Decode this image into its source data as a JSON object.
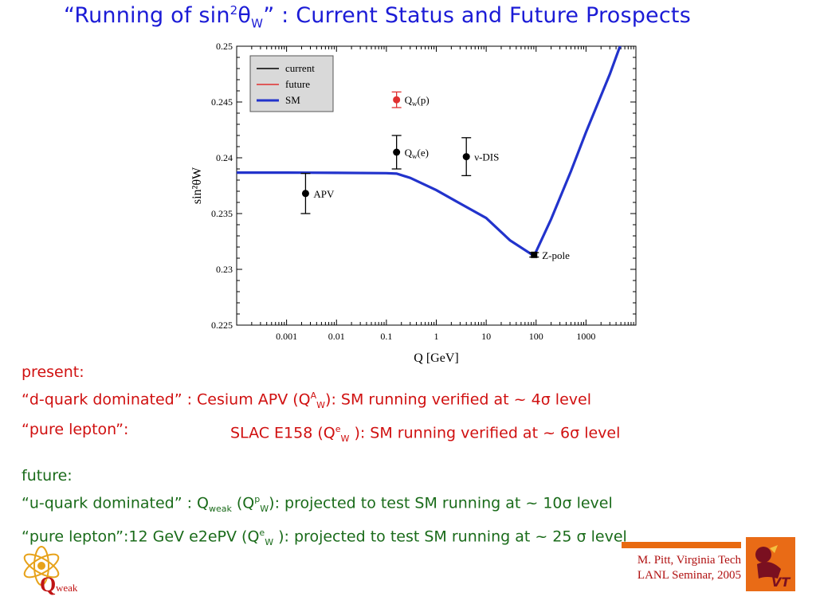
{
  "title": {
    "prefix": "“Running of sin",
    "sup": "2",
    "theta": "θ",
    "sub": "W",
    "suffix": "” : Current Status and Future Prospects"
  },
  "chart_data": {
    "type": "scatter",
    "xlabel": "Q [GeV]",
    "ylabel": "sin²θW",
    "xscale": "log",
    "xlim": [
      0.0001,
      10000
    ],
    "ylim": [
      0.225,
      0.25
    ],
    "xticks": [
      "0.001",
      "0.01",
      "0.1",
      "1",
      "10",
      "100",
      "1000"
    ],
    "xtick_values": [
      0.001,
      0.01,
      0.1,
      1,
      10,
      100,
      1000
    ],
    "yticks": [
      "0.225",
      "0.23",
      "0.235",
      "0.24",
      "0.245",
      "0.25"
    ],
    "ytick_values": [
      0.225,
      0.23,
      0.235,
      0.24,
      0.245,
      0.25
    ],
    "legend": {
      "placement": "top-left",
      "entries": [
        {
          "label": "current",
          "color": "#000000"
        },
        {
          "label": "future",
          "color": "#e03030"
        },
        {
          "label": "SM",
          "color": "#2233cc"
        }
      ]
    },
    "sm_curve": {
      "x": [
        0.0001,
        0.001,
        0.01,
        0.1,
        0.16,
        0.3,
        1,
        3,
        10,
        30,
        91.2,
        200,
        500,
        1000,
        3000,
        5000
      ],
      "y": [
        0.23867,
        0.23867,
        0.23865,
        0.23862,
        0.23858,
        0.2382,
        0.2371,
        0.2359,
        0.2346,
        0.2326,
        0.2312,
        0.2345,
        0.2388,
        0.2423,
        0.2475,
        0.2502
      ]
    },
    "current": [
      {
        "label": "APV",
        "x": 0.0024,
        "y": 0.2368,
        "err": 0.0018
      },
      {
        "label": "Qw(e)",
        "x": 0.16,
        "y": 0.2405,
        "err": 0.0015
      },
      {
        "label": "ν-DIS",
        "x": 4.0,
        "y": 0.2401,
        "err": 0.0017
      },
      {
        "label": "Z-pole",
        "x": 91.2,
        "y": 0.2313,
        "err": 0.0002
      }
    ],
    "future": [
      {
        "label": "Qw(p)",
        "x": 0.16,
        "y": 0.2452,
        "err": 0.0007
      }
    ],
    "grid": false
  },
  "notes": {
    "present_heading": "present:",
    "present_line1_a": "“d-quark dominated” : Cesium APV (Q",
    "present_line1_sup": "A",
    "present_line1_sub": "W",
    "present_line1_b": "): SM running verified at ~ 4σ level",
    "present_line2_label": "“pure lepton”:",
    "present_line2_a": "SLAC E158  (Q",
    "present_line2_sup": "e",
    "present_line2_sub": "W",
    "present_line2_b": " ): SM running verified at ~ 6σ level",
    "future_heading": "future:",
    "future_line1_a": "“u-quark dominated” : Q",
    "future_line1_sub1": "weak",
    "future_line1_b": " (Q",
    "future_line1_sup": "p",
    "future_line1_sub2": "W",
    "future_line1_c": "): projected to test SM running at ~ 10σ level",
    "future_line2_a": "“pure lepton”:12 GeV e2ePV  (Q",
    "future_line2_sup": "e",
    "future_line2_sub": "W",
    "future_line2_b": " ): projected to test SM running at ~ 25 σ level"
  },
  "credit": {
    "line1": "M. Pitt, Virginia Tech",
    "line2": "LANL Seminar, 2005"
  },
  "logos": {
    "left_text": "weak",
    "left_letter": "Q",
    "right_text": "VT"
  }
}
